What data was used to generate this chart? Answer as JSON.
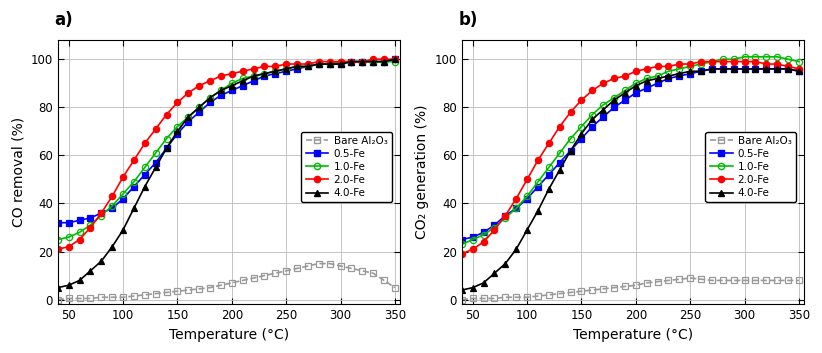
{
  "temp": [
    40,
    50,
    60,
    70,
    80,
    90,
    100,
    110,
    120,
    130,
    140,
    150,
    160,
    170,
    180,
    190,
    200,
    210,
    220,
    230,
    240,
    250,
    260,
    270,
    280,
    290,
    300,
    310,
    320,
    330,
    340,
    350
  ],
  "panel_a": {
    "bare_al2o3": [
      0,
      0.5,
      0.5,
      0.5,
      1,
      1,
      1,
      1.5,
      2,
      2.5,
      3,
      3.5,
      4,
      4.5,
      5,
      6,
      7,
      8,
      9,
      10,
      11,
      12,
      13,
      14,
      15,
      15,
      14,
      13,
      12,
      11,
      8,
      5
    ],
    "fe05": [
      32,
      32,
      33,
      34,
      36,
      38,
      42,
      47,
      52,
      57,
      63,
      69,
      74,
      78,
      82,
      85,
      87,
      89,
      91,
      93,
      94,
      95,
      96,
      97,
      98,
      98,
      98,
      99,
      99,
      99,
      99,
      100
    ],
    "fe10": [
      25,
      26,
      28,
      31,
      35,
      39,
      44,
      49,
      55,
      61,
      67,
      72,
      76,
      80,
      84,
      87,
      90,
      92,
      93,
      94,
      95,
      96,
      97,
      97,
      98,
      98,
      99,
      99,
      99,
      99,
      99,
      99
    ],
    "fe20": [
      21,
      22,
      25,
      30,
      36,
      43,
      51,
      58,
      65,
      71,
      77,
      82,
      86,
      89,
      91,
      93,
      94,
      95,
      96,
      97,
      97,
      98,
      98,
      98,
      99,
      99,
      99,
      99,
      99,
      100,
      100,
      100
    ],
    "fe40": [
      5,
      6,
      8,
      12,
      16,
      22,
      29,
      38,
      47,
      55,
      63,
      70,
      76,
      80,
      84,
      87,
      89,
      91,
      93,
      94,
      95,
      96,
      97,
      97,
      98,
      98,
      98,
      99,
      99,
      99,
      99,
      100
    ]
  },
  "panel_b": {
    "bare_al2o3": [
      0,
      0.5,
      0.5,
      0.5,
      1,
      1,
      1,
      1.5,
      2,
      2.5,
      3,
      3.5,
      4,
      4.5,
      5,
      5.5,
      6,
      7,
      7.5,
      8,
      8.5,
      9,
      8.5,
      8,
      8,
      8,
      8,
      8,
      8,
      8,
      8,
      8
    ],
    "fe05": [
      25,
      26,
      28,
      31,
      35,
      38,
      42,
      47,
      52,
      57,
      62,
      67,
      72,
      76,
      80,
      83,
      86,
      88,
      90,
      92,
      93,
      94,
      95,
      96,
      96,
      96,
      96,
      96,
      96,
      96,
      96,
      95
    ],
    "fe10": [
      23,
      25,
      27,
      30,
      34,
      38,
      43,
      49,
      55,
      61,
      67,
      72,
      77,
      81,
      84,
      87,
      90,
      92,
      93,
      95,
      96,
      97,
      98,
      99,
      100,
      100,
      101,
      101,
      101,
      101,
      100,
      99
    ],
    "fe20": [
      19,
      21,
      24,
      29,
      35,
      42,
      50,
      58,
      65,
      72,
      78,
      83,
      87,
      90,
      92,
      93,
      95,
      96,
      97,
      97,
      98,
      98,
      99,
      99,
      99,
      99,
      99,
      99,
      98,
      98,
      97,
      96
    ],
    "fe40": [
      4,
      5,
      7,
      11,
      15,
      21,
      29,
      37,
      46,
      54,
      62,
      69,
      75,
      79,
      83,
      86,
      89,
      91,
      92,
      93,
      94,
      95,
      95,
      96,
      96,
      96,
      96,
      96,
      96,
      96,
      96,
      95
    ]
  },
  "xlim": [
    40,
    355
  ],
  "ylim": [
    -2,
    108
  ],
  "xticks": [
    50,
    100,
    150,
    200,
    250,
    300,
    350
  ],
  "yticks": [
    0,
    20,
    40,
    60,
    80,
    100
  ],
  "xlabel": "Temperature (°C)",
  "ylabel_a": "CO removal (%)",
  "ylabel_b": "CO₂ generation (%)",
  "label_a": "a)",
  "label_b": "b)",
  "legend_labels": [
    "Bare Al₂O₃",
    "0.5-Fe",
    "1.0-Fe",
    "2.0-Fe",
    "4.0-Fe"
  ],
  "colors": {
    "bare": "#999999",
    "fe05": "#0000FF",
    "fe10": "#00BB00",
    "fe20": "#FF0000",
    "fe40": "#000000"
  },
  "grid_color": "#BBBBBB",
  "marker_size": 4.5,
  "line_width": 1.2
}
